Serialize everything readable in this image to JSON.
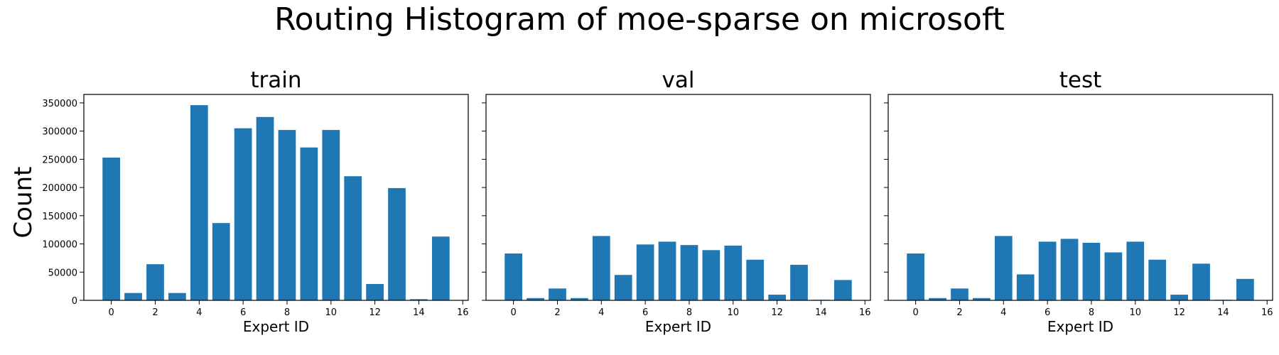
{
  "figure": {
    "title": "Routing Histogram of moe-sparse on microsoft",
    "ylabel": "Count"
  },
  "colors": {
    "bar": "#1f77b4",
    "axis": "#000000"
  },
  "chart_data": [
    {
      "type": "bar",
      "title": "train",
      "xlabel": "Expert ID",
      "categories": [
        0,
        1,
        2,
        3,
        4,
        5,
        6,
        7,
        8,
        9,
        10,
        11,
        12,
        13,
        14,
        15
      ],
      "values": [
        253000,
        13000,
        64000,
        13000,
        346000,
        137000,
        305000,
        325000,
        302000,
        271000,
        302000,
        220000,
        29000,
        199000,
        2000,
        113000
      ],
      "xlim": [
        -1.25,
        16.25
      ],
      "ylim": [
        0,
        365000
      ],
      "xticks": [
        0,
        2,
        4,
        6,
        8,
        10,
        12,
        14,
        16
      ],
      "yticks": [
        0,
        50000,
        100000,
        150000,
        200000,
        250000,
        300000,
        350000
      ],
      "grid": false,
      "show_ytick_labels": true
    },
    {
      "type": "bar",
      "title": "val",
      "xlabel": "Expert ID",
      "categories": [
        0,
        1,
        2,
        3,
        4,
        5,
        6,
        7,
        8,
        9,
        10,
        11,
        12,
        13,
        14,
        15
      ],
      "values": [
        83000,
        4000,
        21000,
        4000,
        114000,
        45000,
        99000,
        104000,
        98000,
        89000,
        97000,
        72000,
        10000,
        63000,
        1000,
        36000
      ],
      "xlim": [
        -1.25,
        16.25
      ],
      "ylim": [
        0,
        365000
      ],
      "xticks": [
        0,
        2,
        4,
        6,
        8,
        10,
        12,
        14,
        16
      ],
      "yticks": [
        0,
        50000,
        100000,
        150000,
        200000,
        250000,
        300000,
        350000
      ],
      "grid": false,
      "show_ytick_labels": false
    },
    {
      "type": "bar",
      "title": "test",
      "xlabel": "Expert ID",
      "categories": [
        0,
        1,
        2,
        3,
        4,
        5,
        6,
        7,
        8,
        9,
        10,
        11,
        12,
        13,
        14,
        15
      ],
      "values": [
        83000,
        4000,
        21000,
        4000,
        114000,
        46000,
        104000,
        109000,
        102000,
        85000,
        104000,
        72000,
        10000,
        65000,
        1000,
        38000
      ],
      "xlim": [
        -1.25,
        16.25
      ],
      "ylim": [
        0,
        365000
      ],
      "xticks": [
        0,
        2,
        4,
        6,
        8,
        10,
        12,
        14,
        16
      ],
      "yticks": [
        0,
        50000,
        100000,
        150000,
        200000,
        250000,
        300000,
        350000
      ],
      "grid": false,
      "show_ytick_labels": false
    }
  ]
}
